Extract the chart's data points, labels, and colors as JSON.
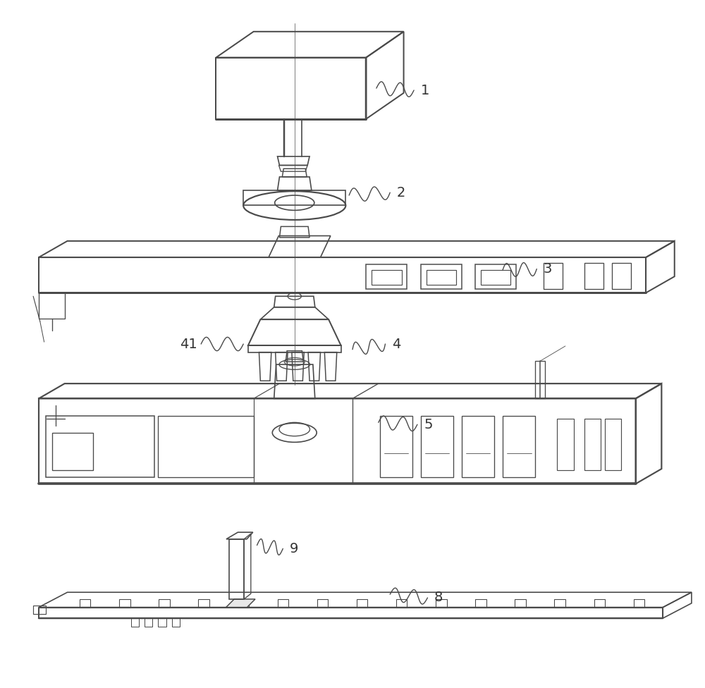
{
  "background_color": "#ffffff",
  "line_color": "#4a4a4a",
  "line_width": 1.2,
  "label_color": "#333333",
  "figsize": [
    10.0,
    9.76
  ]
}
